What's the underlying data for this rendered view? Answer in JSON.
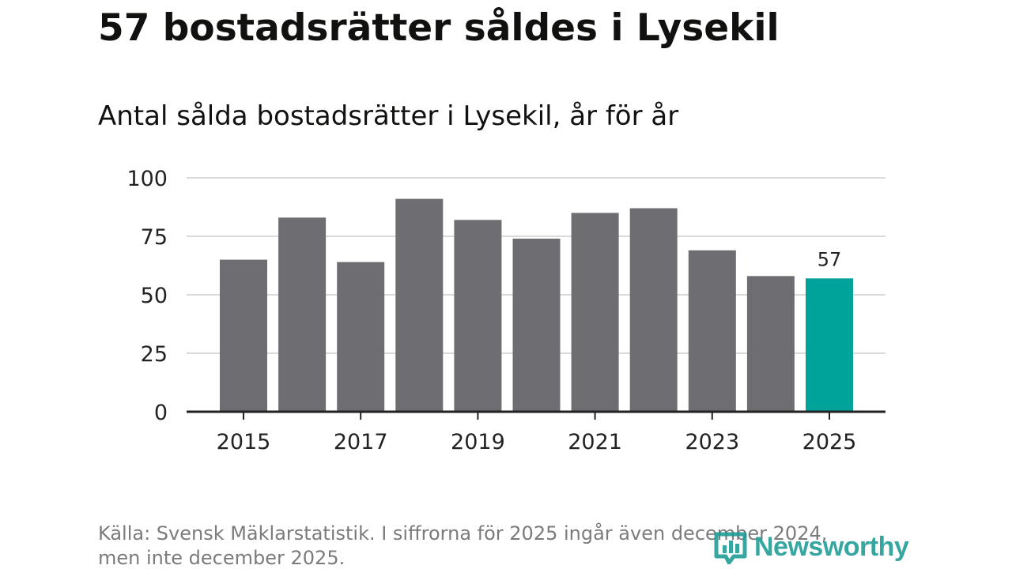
{
  "title": "57 bostadsrätter såldes i Lysekil",
  "subtitle": "Antal sålda bostadsrätter i Lysekil, år för år",
  "source": {
    "line1": "Källa: Svensk Mäklarstatistik. I siffrorna för 2025 ingår även december 2024,",
    "line2": "men inte december 2025."
  },
  "logo": {
    "text": "Newsworthy"
  },
  "colors": {
    "bar": "#6e6d72",
    "highlight": "#00a39a",
    "grid": "#d9d9d9",
    "axis": "#222222",
    "text": "#222222"
  },
  "chart_data": {
    "type": "bar",
    "title": "57 bostadsrätter såldes i Lysekil",
    "subtitle": "Antal sålda bostadsrätter i Lysekil, år för år",
    "xlabel": "",
    "ylabel": "",
    "categories": [
      "2015",
      "2016",
      "2017",
      "2018",
      "2019",
      "2020",
      "2021",
      "2022",
      "2023",
      "2024",
      "2025"
    ],
    "values": [
      65,
      83,
      64,
      91,
      82,
      74,
      85,
      87,
      69,
      58,
      57
    ],
    "highlight_index": 10,
    "highlight_label": "57",
    "x_tick_labels": [
      "2015",
      "2017",
      "2019",
      "2021",
      "2023",
      "2025"
    ],
    "y_ticks": [
      0,
      25,
      50,
      75,
      100
    ],
    "y_tick_labels": [
      "0",
      "25",
      "50",
      "75",
      "100"
    ],
    "ylim": [
      0,
      100
    ],
    "grid": true
  }
}
